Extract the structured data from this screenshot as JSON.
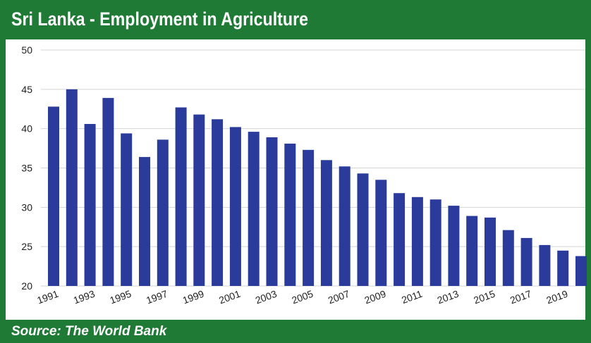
{
  "title": "Sri Lanka - Employment in Agriculture",
  "source": "Source: The World Bank",
  "colors": {
    "frame": "#1e7a34",
    "bar": "#2a3b9c",
    "grid": "#d4d4d4"
  },
  "chart_data": {
    "type": "bar",
    "title": "Sri Lanka - Employment in Agriculture",
    "xlabel": "",
    "ylabel": "",
    "ylim": [
      20,
      50
    ],
    "yticks": [
      20,
      25,
      30,
      35,
      40,
      45,
      50
    ],
    "grid": true,
    "legend": "none",
    "x_tick_labels": [
      "1991",
      "1993",
      "1995",
      "1997",
      "1999",
      "2001",
      "2003",
      "2005",
      "2007",
      "2009",
      "2011",
      "2013",
      "2015",
      "2017",
      "2019"
    ],
    "categories": [
      "1991",
      "1992",
      "1993",
      "1994",
      "1995",
      "1996",
      "1997",
      "1998",
      "1999",
      "2000",
      "2001",
      "2002",
      "2003",
      "2004",
      "2005",
      "2006",
      "2007",
      "2008",
      "2009",
      "2010",
      "2011",
      "2012",
      "2013",
      "2014",
      "2015",
      "2016",
      "2017",
      "2018",
      "2019",
      "2020"
    ],
    "values": [
      42.8,
      45.0,
      40.6,
      43.9,
      39.4,
      36.4,
      38.6,
      42.7,
      41.8,
      41.2,
      40.2,
      39.6,
      38.9,
      38.1,
      37.3,
      36.0,
      35.2,
      34.3,
      33.5,
      31.8,
      31.3,
      31.0,
      30.2,
      28.9,
      28.7,
      27.1,
      26.1,
      25.2,
      24.5,
      23.8
    ]
  }
}
